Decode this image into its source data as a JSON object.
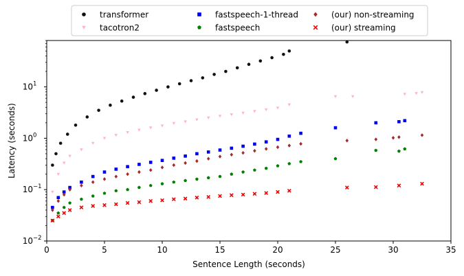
{
  "chart_data": {
    "type": "scatter",
    "title": "",
    "xlabel": "Sentence Length (seconds)",
    "ylabel": "Latency (seconds)",
    "xlim": [
      0,
      35
    ],
    "ylim": [
      0.01,
      80
    ],
    "yscale": "log",
    "grid": false,
    "legend_position": "top-center",
    "x_ticks": [
      0,
      5,
      10,
      15,
      20,
      25,
      30,
      35
    ],
    "x_tick_labels": [
      "0",
      "5",
      "10",
      "15",
      "20",
      "25",
      "30",
      "35"
    ],
    "y_ticks": [
      0.01,
      0.1,
      1,
      10
    ],
    "y_tick_labels": [
      "10",
      "10",
      "10",
      "10"
    ],
    "y_tick_exponents": [
      "−2",
      "−1",
      "0",
      "1"
    ],
    "series": [
      {
        "name": "transformer",
        "marker": "circle",
        "color": "#111111",
        "x": [
          0.5,
          0.8,
          1.2,
          1.8,
          2.5,
          3.5,
          4.5,
          5.5,
          6.5,
          7.5,
          8.5,
          9.5,
          10.5,
          11.5,
          12.5,
          13.5,
          14.5,
          15.5,
          16.5,
          17.5,
          18.5,
          19.5,
          20.5,
          21,
          26
        ],
        "y": [
          0.3,
          0.5,
          0.8,
          1.2,
          1.8,
          2.6,
          3.5,
          4.4,
          5.3,
          6.3,
          7.4,
          8.6,
          10,
          11.5,
          13.2,
          15,
          17.5,
          20,
          23.5,
          27.5,
          32,
          37,
          43,
          50,
          75
        ]
      },
      {
        "name": "tacotron2",
        "marker": "triangle-down",
        "color": "#ffb6c1",
        "x": [
          0.5,
          1,
          1.5,
          2,
          3,
          4,
          5,
          6,
          7,
          8,
          9,
          10,
          11,
          12,
          13,
          14,
          15,
          16,
          17,
          18,
          19,
          20,
          21,
          25,
          26.5,
          31,
          32,
          32.5
        ],
        "y": [
          0.09,
          0.2,
          0.33,
          0.45,
          0.6,
          0.8,
          1,
          1.15,
          1.3,
          1.45,
          1.6,
          1.75,
          1.95,
          2.1,
          2.3,
          2.5,
          2.7,
          2.9,
          3.1,
          3.35,
          3.6,
          3.9,
          4.5,
          6.5,
          6.5,
          7.2,
          7.5,
          7.8
        ]
      },
      {
        "name": "fastspeech-1-thread",
        "marker": "square",
        "color": "#0000ee",
        "x": [
          0.5,
          1,
          1.5,
          2,
          3,
          4,
          5,
          6,
          7,
          8,
          9,
          10,
          11,
          12,
          13,
          14,
          15,
          16,
          17,
          18,
          19,
          20,
          21,
          22,
          25,
          28.5,
          30.5,
          31
        ],
        "y": [
          0.045,
          0.07,
          0.09,
          0.11,
          0.14,
          0.18,
          0.22,
          0.25,
          0.28,
          0.31,
          0.34,
          0.37,
          0.41,
          0.45,
          0.5,
          0.54,
          0.59,
          0.64,
          0.7,
          0.77,
          0.85,
          0.95,
          1.1,
          1.25,
          1.6,
          2,
          2.1,
          2.2
        ]
      },
      {
        "name": "fastspeech",
        "marker": "pentagon",
        "color": "#008000",
        "x": [
          0.5,
          1,
          1.5,
          2,
          3,
          4,
          5,
          6,
          7,
          8,
          9,
          10,
          11,
          12,
          13,
          14,
          15,
          16,
          17,
          18,
          19,
          20,
          21,
          22,
          25,
          28.5,
          30.5,
          31
        ],
        "y": [
          0.025,
          0.035,
          0.045,
          0.055,
          0.065,
          0.075,
          0.085,
          0.095,
          0.1,
          0.11,
          0.12,
          0.13,
          0.14,
          0.15,
          0.16,
          0.17,
          0.18,
          0.2,
          0.22,
          0.24,
          0.26,
          0.29,
          0.32,
          0.35,
          0.4,
          0.58,
          0.56,
          0.62
        ]
      },
      {
        "name": "(our) non-streaming",
        "marker": "diamond",
        "color": "#a52a2a",
        "x": [
          0.5,
          1,
          1.5,
          2,
          3,
          4,
          5,
          6,
          7,
          8,
          9,
          10,
          11,
          12,
          13,
          14,
          15,
          16,
          17,
          18,
          19,
          20,
          21,
          22,
          26,
          28.5,
          30,
          30.5,
          32.5
        ],
        "y": [
          0.04,
          0.06,
          0.08,
          0.1,
          0.12,
          0.14,
          0.16,
          0.18,
          0.2,
          0.22,
          0.24,
          0.27,
          0.3,
          0.33,
          0.36,
          0.4,
          0.44,
          0.48,
          0.52,
          0.57,
          0.62,
          0.67,
          0.72,
          0.78,
          0.9,
          0.95,
          1.02,
          1.05,
          1.15
        ]
      },
      {
        "name": "(our) streaming",
        "marker": "x",
        "color": "#ee0000",
        "x": [
          0.5,
          1,
          1.5,
          2,
          3,
          4,
          5,
          6,
          7,
          8,
          9,
          10,
          11,
          12,
          13,
          14,
          15,
          16,
          17,
          18,
          19,
          20,
          21,
          26,
          28.5,
          30.5,
          32.5
        ],
        "y": [
          0.025,
          0.03,
          0.035,
          0.04,
          0.045,
          0.048,
          0.05,
          0.052,
          0.055,
          0.057,
          0.06,
          0.062,
          0.065,
          0.067,
          0.07,
          0.072,
          0.075,
          0.078,
          0.08,
          0.083,
          0.086,
          0.09,
          0.095,
          0.11,
          0.112,
          0.12,
          0.13
        ]
      }
    ]
  }
}
